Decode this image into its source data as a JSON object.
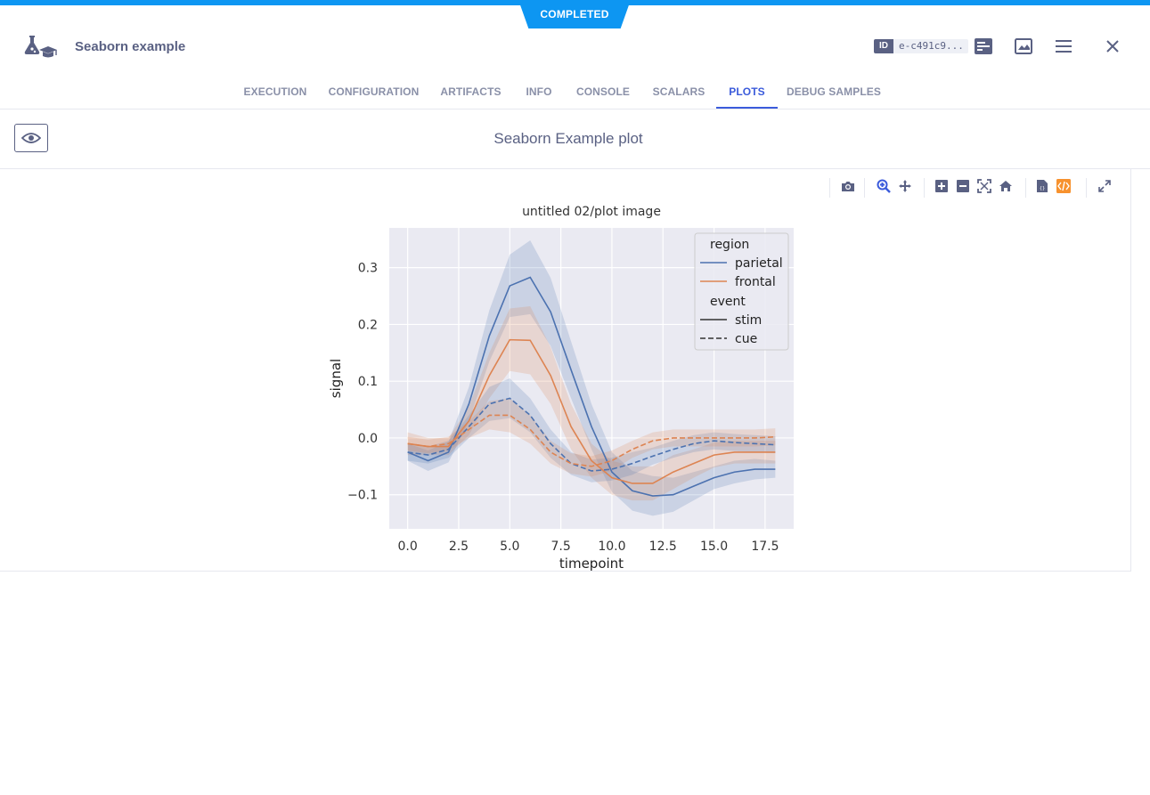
{
  "status": "COMPLETED",
  "header": {
    "title": "Seaborn example",
    "id_label": "ID",
    "id_value": "e-c491c9..."
  },
  "tabs": [
    {
      "label": "EXECUTION"
    },
    {
      "label": "CONFIGURATION"
    },
    {
      "label": "ARTIFACTS"
    },
    {
      "label": "INFO"
    },
    {
      "label": "CONSOLE"
    },
    {
      "label": "SCALARS"
    },
    {
      "label": "PLOTS",
      "active": true
    },
    {
      "label": "DEBUG SAMPLES"
    }
  ],
  "plot_section_title": "Seaborn Example plot",
  "colors": {
    "accent": "#0d96f2",
    "active_tab": "#3b5bdb",
    "text": "#5a6183",
    "parietal": "#4c72b0",
    "frontal": "#dd8452",
    "plot_bg": "#eaeaf2",
    "modebar_orange": "#f7922e"
  },
  "modebar_icons": [
    "camera-icon",
    "zoom-icon",
    "pan-icon",
    "zoom-in-icon",
    "zoom-out-icon",
    "autoscale-icon",
    "reset-axes-icon",
    "download-json-icon",
    "embed-code-icon",
    "fullscreen-icon"
  ],
  "chart_data": {
    "type": "line",
    "title": "untitled 02/plot image",
    "xlabel": "timepoint",
    "ylabel": "signal",
    "xlim": [
      -0.9,
      18.9
    ],
    "ylim": [
      -0.16,
      0.37
    ],
    "xticks": [
      "0.0",
      "2.5",
      "5.0",
      "7.5",
      "10.0",
      "12.5",
      "15.0",
      "17.5"
    ],
    "xtick_values": [
      0,
      2.5,
      5,
      7.5,
      10,
      12.5,
      15,
      17.5
    ],
    "yticks": [
      "−0.1",
      "0.0",
      "0.1",
      "0.2",
      "0.3"
    ],
    "ytick_values": [
      -0.1,
      0,
      0.1,
      0.2,
      0.3
    ],
    "grid": true,
    "legend": {
      "placement": "top-right",
      "region_title": "region",
      "event_title": "event",
      "entries": [
        {
          "label": "parietal"
        },
        {
          "label": "frontal"
        },
        {
          "label": "stim"
        },
        {
          "label": "cue"
        }
      ]
    },
    "x": [
      0,
      1,
      2,
      3,
      4,
      5,
      6,
      7,
      8,
      9,
      10,
      11,
      12,
      13,
      14,
      15,
      16,
      17,
      18
    ],
    "series": [
      {
        "region": "parietal",
        "event": "stim",
        "values": [
          -0.025,
          -0.04,
          -0.025,
          0.06,
          0.18,
          0.268,
          0.283,
          0.222,
          0.12,
          0.02,
          -0.06,
          -0.093,
          -0.102,
          -0.1,
          -0.085,
          -0.07,
          -0.06,
          -0.055,
          -0.055
        ],
        "ci": [
          0.015,
          0.018,
          0.018,
          0.03,
          0.045,
          0.055,
          0.065,
          0.06,
          0.05,
          0.04,
          0.035,
          0.035,
          0.035,
          0.03,
          0.025,
          0.02,
          0.02,
          0.018,
          0.015
        ]
      },
      {
        "region": "frontal",
        "event": "stim",
        "values": [
          -0.01,
          -0.015,
          -0.015,
          0.03,
          0.11,
          0.173,
          0.172,
          0.11,
          0.02,
          -0.04,
          -0.07,
          -0.08,
          -0.08,
          -0.06,
          -0.045,
          -0.03,
          -0.025,
          -0.025,
          -0.025
        ],
        "ci": [
          0.02,
          0.015,
          0.015,
          0.025,
          0.04,
          0.055,
          0.06,
          0.05,
          0.04,
          0.03,
          0.03,
          0.03,
          0.03,
          0.03,
          0.025,
          0.022,
          0.02,
          0.02,
          0.02
        ]
      },
      {
        "region": "parietal",
        "event": "cue",
        "values": [
          -0.025,
          -0.03,
          -0.02,
          0.02,
          0.06,
          0.07,
          0.04,
          -0.01,
          -0.045,
          -0.058,
          -0.055,
          -0.045,
          -0.032,
          -0.02,
          -0.01,
          -0.005,
          -0.008,
          -0.01,
          -0.012
        ],
        "ci": [
          0.015,
          0.015,
          0.015,
          0.02,
          0.03,
          0.035,
          0.03,
          0.025,
          0.02,
          0.02,
          0.02,
          0.02,
          0.015,
          0.015,
          0.015,
          0.015,
          0.015,
          0.015,
          0.015
        ]
      },
      {
        "region": "frontal",
        "event": "cue",
        "values": [
          -0.01,
          -0.015,
          -0.01,
          0.015,
          0.04,
          0.04,
          0.015,
          -0.025,
          -0.045,
          -0.05,
          -0.04,
          -0.02,
          -0.005,
          0.0,
          0.0,
          0.0,
          0.0,
          0.0,
          0.002
        ],
        "ci": [
          0.012,
          0.012,
          0.012,
          0.015,
          0.025,
          0.03,
          0.025,
          0.02,
          0.018,
          0.018,
          0.018,
          0.015,
          0.015,
          0.015,
          0.015,
          0.015,
          0.015,
          0.015,
          0.015
        ]
      }
    ]
  }
}
